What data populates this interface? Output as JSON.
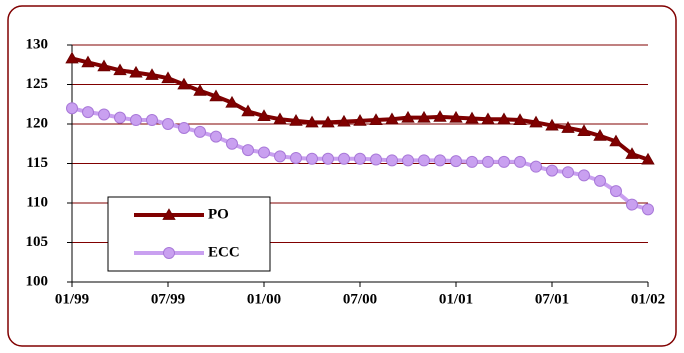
{
  "chart_data": {
    "type": "line",
    "categories": [
      "01/99",
      null,
      null,
      null,
      null,
      null,
      "07/99",
      null,
      null,
      null,
      null,
      null,
      "01/00",
      null,
      null,
      null,
      null,
      null,
      "07/00",
      null,
      null,
      null,
      null,
      null,
      "01/01",
      null,
      null,
      null,
      null,
      null,
      "07/01",
      null,
      null,
      null,
      null,
      null,
      "01/02"
    ],
    "series": [
      {
        "name": "PO",
        "color": "#800000",
        "marker": "triangle",
        "values": [
          128.3,
          127.8,
          127.3,
          126.8,
          126.5,
          126.2,
          125.8,
          125.0,
          124.2,
          123.5,
          122.7,
          121.6,
          121.0,
          120.6,
          120.4,
          120.2,
          120.2,
          120.3,
          120.4,
          120.5,
          120.6,
          120.8,
          120.8,
          120.9,
          120.8,
          120.7,
          120.6,
          120.6,
          120.5,
          120.2,
          119.8,
          119.5,
          119.1,
          118.5,
          117.8,
          116.2,
          115.5
        ]
      },
      {
        "name": "ECC",
        "color": "#c9a0f0",
        "marker": "circle",
        "values": [
          122.0,
          121.5,
          121.2,
          120.8,
          120.5,
          120.5,
          120.0,
          119.5,
          119.0,
          118.4,
          117.5,
          116.7,
          116.4,
          115.9,
          115.7,
          115.6,
          115.6,
          115.6,
          115.6,
          115.5,
          115.4,
          115.4,
          115.4,
          115.4,
          115.3,
          115.2,
          115.2,
          115.2,
          115.2,
          114.6,
          114.1,
          113.9,
          113.5,
          112.8,
          111.5,
          109.8,
          109.2
        ]
      }
    ],
    "ylim": [
      100,
      130
    ],
    "yticks": [
      100,
      105,
      110,
      115,
      120,
      125,
      130
    ],
    "grid": true
  }
}
